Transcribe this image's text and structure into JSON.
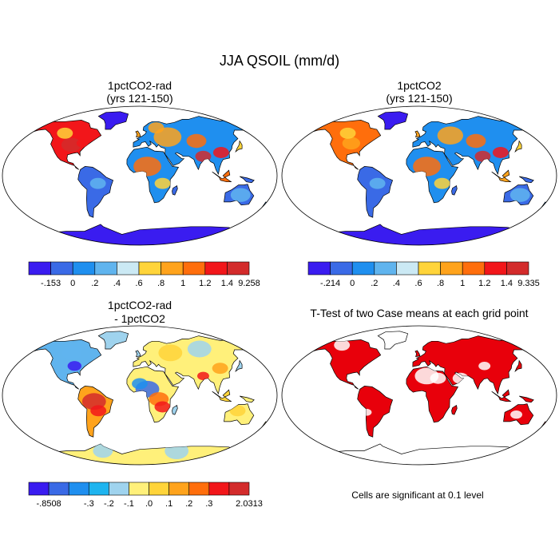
{
  "title": "JJA QSOIL (mm/d)",
  "colors": {
    "ocean": "#ffffff",
    "outline": "#000000",
    "significant": "#e8000b"
  },
  "chart_data": [
    {
      "type": "heatmap",
      "title_line1": "1pctCO2-rad",
      "title_line2": "(yrs 121-150)",
      "colorbar": {
        "labels": [
          "-.153",
          "0",
          ".2",
          ".4",
          ".6",
          ".8",
          "1",
          "1.2",
          "1.4",
          "9.258"
        ],
        "colors": [
          "#3a1cf0",
          "#3a6ae6",
          "#1f8fef",
          "#60b4ee",
          "#cbe9f4",
          "#ffd43a",
          "#ffa31c",
          "#ff6e0c",
          "#f2161a",
          "#d32b2b"
        ]
      }
    },
    {
      "type": "heatmap",
      "title_line1": "1pctCO2",
      "title_line2": "(yrs 121-150)",
      "colorbar": {
        "labels": [
          "-.214",
          "0",
          ".2",
          ".4",
          ".6",
          ".8",
          "1",
          "1.2",
          "1.4",
          "9.335"
        ],
        "colors": [
          "#3a1cf0",
          "#3a6ae6",
          "#1f8fef",
          "#60b4ee",
          "#cbe9f4",
          "#ffd43a",
          "#ffa31c",
          "#ff6e0c",
          "#f2161a",
          "#d32b2b"
        ]
      }
    },
    {
      "type": "heatmap",
      "title_line1": "1pctCO2-rad",
      "title_line2": "- 1pctCO2",
      "colorbar": {
        "labels": [
          "-.8508",
          "",
          "-.3",
          "-.2",
          "-.1",
          ".0",
          ".1",
          ".2",
          ".3",
          "",
          "2.0313"
        ],
        "colors": [
          "#3a1cf0",
          "#3a6ae6",
          "#1f8fef",
          "#1eb4ef",
          "#9fd3ee",
          "#fff07a",
          "#ffd43a",
          "#ffa31c",
          "#ff6e0c",
          "#f2161a",
          "#d32b2b"
        ]
      }
    },
    {
      "type": "heatmap",
      "title_line1": "T-Test of two Case means at each grid point",
      "note": "Cells are significant at 0.1 level"
    }
  ]
}
